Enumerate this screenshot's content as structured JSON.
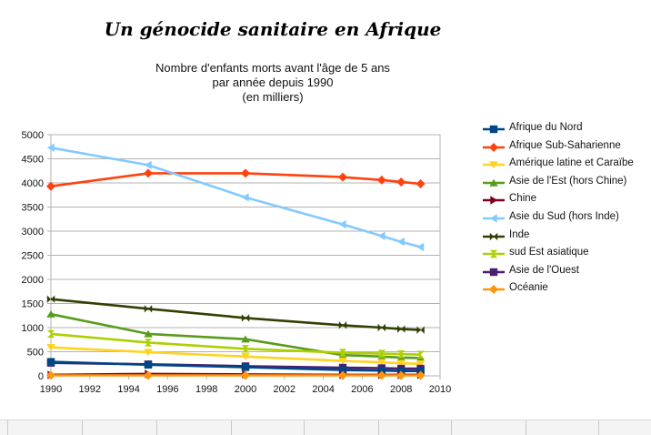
{
  "header": {
    "title": "Un génocide sanitaire en Afrique",
    "subtitle_lines": [
      "Nombre d'enfants morts avant l'âge de 5 ans",
      "par année depuis 1990",
      "(en milliers)"
    ]
  },
  "chart_data": {
    "type": "line",
    "title": "Un génocide sanitaire en Afrique",
    "subtitle": "Nombre d'enfants morts avant l'âge de 5 ans par année depuis 1990 (en milliers)",
    "xlabel": "",
    "ylabel": "",
    "xlim": [
      1990,
      2010
    ],
    "ylim": [
      0,
      5000
    ],
    "x_ticks": [
      1990,
      1992,
      1994,
      1996,
      1998,
      2000,
      2002,
      2004,
      2006,
      2008,
      2010
    ],
    "y_ticks": [
      0,
      500,
      1000,
      1500,
      2000,
      2500,
      3000,
      3500,
      4000,
      4500,
      5000
    ],
    "grid": {
      "horizontal": true,
      "vertical": false
    },
    "legend_position": "right",
    "x": [
      1990,
      1995,
      2000,
      2005,
      2007,
      2008,
      2009
    ],
    "series": [
      {
        "name": "Afrique du Nord",
        "color": "#004586",
        "marker": "square",
        "values": [
          290,
          230,
          180,
          120,
          110,
          100,
          100
        ]
      },
      {
        "name": "Afrique Sub-Saharienne",
        "color": "#ff420e",
        "marker": "diamond",
        "values": [
          3930,
          4200,
          4200,
          4120,
          4060,
          4020,
          3980
        ]
      },
      {
        "name": "Amérique latine et Caraïbe",
        "color": "#ffd320",
        "marker": "triangle-down",
        "values": [
          590,
          490,
          400,
          310,
          280,
          260,
          250
        ]
      },
      {
        "name": "Asie de l'Est (hors Chine)",
        "color": "#579d1c",
        "marker": "triangle-up",
        "values": [
          1280,
          870,
          760,
          430,
          400,
          380,
          370
        ]
      },
      {
        "name": "Chine",
        "color": "#7e0021",
        "marker": "triangle-right",
        "values": [
          20,
          40,
          30,
          20,
          20,
          20,
          20
        ]
      },
      {
        "name": "Asie du Sud (hors Inde)",
        "color": "#83caff",
        "marker": "triangle-left",
        "values": [
          4730,
          4370,
          3700,
          3140,
          2900,
          2780,
          2670
        ]
      },
      {
        "name": "Inde",
        "color": "#314004",
        "marker": "bowtie",
        "values": [
          1590,
          1390,
          1200,
          1050,
          1000,
          970,
          950
        ]
      },
      {
        "name": "sud Est asiatique",
        "color": "#aecf00",
        "marker": "hourglass",
        "values": [
          870,
          690,
          560,
          480,
          460,
          450,
          440
        ]
      },
      {
        "name": "Asie de l'Ouest",
        "color": "#4b1f6f",
        "marker": "square",
        "values": [
          270,
          240,
          200,
          170,
          160,
          150,
          150
        ]
      },
      {
        "name": "Océanie",
        "color": "#ff950e",
        "marker": "diamond",
        "values": [
          10,
          10,
          10,
          10,
          10,
          10,
          10
        ]
      }
    ]
  }
}
